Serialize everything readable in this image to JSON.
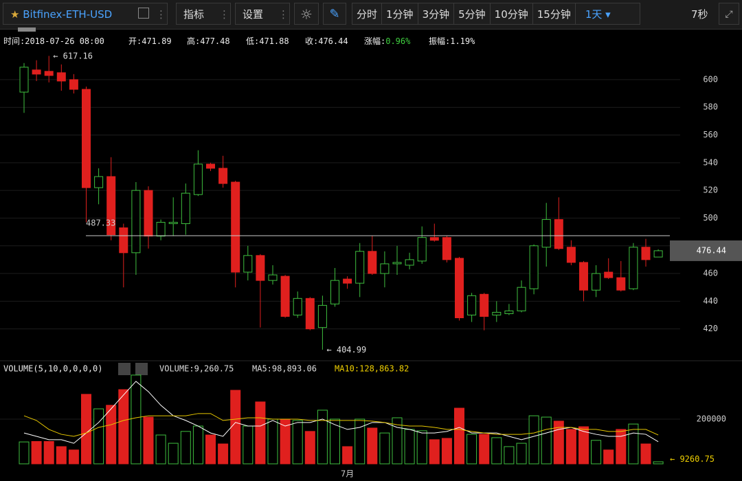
{
  "toolbar": {
    "symbol": "Bitfinex-ETH-USD",
    "buttons": [
      "指标",
      "设置"
    ],
    "periods": [
      "分时",
      "1分钟",
      "3分钟",
      "5分钟",
      "10分钟",
      "15分钟",
      "1天"
    ],
    "countdown": "7秒"
  },
  "chart_data": [
    {
      "type": "candlestick",
      "info": [
        {
          "label": "时间:",
          "value": "2018-07-26 08:00"
        },
        {
          "label": "开:",
          "value": 471.89
        },
        {
          "label": "高:",
          "value": 477.48
        },
        {
          "label": "低:",
          "value": 471.88
        },
        {
          "label": "收:",
          "value": 476.44
        },
        {
          "label": "涨幅:",
          "value": "0.96%",
          "color": "#3fcf3f"
        },
        {
          "label": "振幅:",
          "value": "1.19%"
        }
      ],
      "open": [
        591,
        607,
        606,
        605,
        600,
        593,
        522,
        530,
        493,
        475,
        520,
        487,
        496,
        496,
        517,
        539,
        536,
        526,
        461,
        473,
        455,
        458,
        430,
        442,
        421,
        438,
        456,
        453,
        476,
        460,
        467,
        466,
        469,
        486,
        486,
        471,
        430,
        445,
        430,
        431,
        433,
        449,
        479,
        499,
        479,
        468,
        448,
        461,
        457,
        449,
        479,
        471.89
      ],
      "high": [
        612,
        614,
        617.16,
        611,
        604,
        595,
        536,
        544,
        496,
        526,
        523,
        499,
        515,
        525,
        549,
        540,
        545,
        527,
        480,
        474,
        466,
        459,
        447,
        443,
        444,
        464,
        458,
        482,
        487,
        476,
        480,
        475,
        494,
        496,
        487,
        472,
        446,
        446,
        440,
        438,
        455,
        481,
        511,
        515,
        484,
        469,
        466,
        471,
        469,
        482,
        485,
        477.48
      ],
      "low": [
        576,
        599,
        598,
        592,
        590,
        497,
        510,
        484,
        450,
        459,
        478,
        484,
        487,
        488,
        516,
        534,
        522,
        450,
        455,
        421,
        452,
        428,
        428,
        419,
        404.99,
        436,
        449,
        443,
        459,
        450,
        459,
        463,
        467,
        483,
        468,
        426,
        425,
        419,
        425,
        430,
        432,
        445,
        465,
        477,
        466,
        440,
        443,
        456,
        447,
        448,
        465,
        471.88
      ],
      "close": [
        609,
        604,
        603,
        599,
        593,
        522,
        530,
        488,
        475,
        520,
        487,
        497,
        497,
        518,
        539,
        536,
        525,
        461,
        473,
        455,
        459,
        429,
        442,
        420,
        437,
        455,
        453,
        476,
        460,
        467,
        468,
        470,
        486,
        484,
        470,
        428,
        444,
        429,
        432,
        433,
        450,
        480,
        499,
        478,
        468,
        448,
        460,
        457,
        448,
        479,
        470,
        476.44
      ],
      "up_color": "#3fbf3f",
      "down_color": "#e0201e",
      "ylim": [
        397,
        620.3
      ],
      "yticks": [
        420,
        440,
        460,
        480,
        500,
        520,
        540,
        560,
        580,
        600
      ],
      "grid": true,
      "reference_line": 487.33
    },
    {
      "type": "bar",
      "title": "VOLUME(5,10,0,0,0,0)",
      "legend": [
        {
          "text": "VOLUME:9,260.75",
          "color": "#dddddd"
        },
        {
          "text": "MA5:98,893.06",
          "color": "#dddddd"
        },
        {
          "text": "MA10:128,863.82",
          "color": "#f0d000"
        }
      ],
      "categories": [
        null,
        null,
        null,
        null,
        null,
        null,
        null,
        null,
        null,
        null,
        null,
        null,
        null,
        null,
        null,
        null,
        null,
        null,
        null,
        null,
        null,
        null,
        null,
        null,
        null,
        null,
        "7月",
        null,
        null,
        null,
        null,
        null,
        null,
        null,
        null,
        null,
        null,
        null,
        null,
        null,
        null,
        null,
        null,
        null,
        null,
        null,
        null,
        null,
        null,
        null,
        null,
        null
      ],
      "values": [
        98000,
        100000,
        100000,
        77000,
        62000,
        311000,
        246000,
        262000,
        332000,
        397000,
        209000,
        129000,
        92000,
        145000,
        169000,
        129000,
        89000,
        329000,
        169000,
        277000,
        200000,
        200000,
        194000,
        145000,
        240000,
        200000,
        77000,
        200000,
        160000,
        138000,
        206000,
        154000,
        148000,
        108000,
        114000,
        249000,
        132000,
        132000,
        117000,
        77000,
        92000,
        215000,
        209000,
        191000,
        154000,
        166000,
        105000,
        62000,
        154000,
        178000,
        89000,
        9260.75
      ],
      "ma5": {
        "color": "#ffffff",
        "values": [
          138000,
          123000,
          108000,
          108000,
          92000,
          138000,
          185000,
          246000,
          308000,
          369000,
          323000,
          262000,
          215000,
          194000,
          169000,
          138000,
          123000,
          185000,
          169000,
          169000,
          194000,
          169000,
          185000,
          185000,
          200000,
          175000,
          154000,
          163000,
          185000,
          185000,
          163000,
          154000,
          138000,
          138000,
          145000,
          163000,
          138000,
          138000,
          138000,
          123000,
          108000,
          123000,
          138000,
          154000,
          163000,
          145000,
          132000,
          123000,
          123000,
          138000,
          132000,
          98893.06
        ]
      },
      "ma10": {
        "color": "#e8c800",
        "values": [
          215000,
          194000,
          154000,
          132000,
          123000,
          138000,
          163000,
          175000,
          194000,
          206000,
          215000,
          215000,
          215000,
          215000,
          225000,
          225000,
          194000,
          200000,
          206000,
          206000,
          200000,
          200000,
          200000,
          194000,
          194000,
          194000,
          194000,
          194000,
          191000,
          185000,
          175000,
          169000,
          169000,
          163000,
          154000,
          154000,
          145000,
          138000,
          132000,
          132000,
          132000,
          138000,
          154000,
          163000,
          163000,
          154000,
          154000,
          145000,
          145000,
          154000,
          154000,
          128863.82
        ]
      },
      "ylim": [
        0,
        455000
      ],
      "yticks": [
        200000
      ],
      "grid": true
    }
  ]
}
